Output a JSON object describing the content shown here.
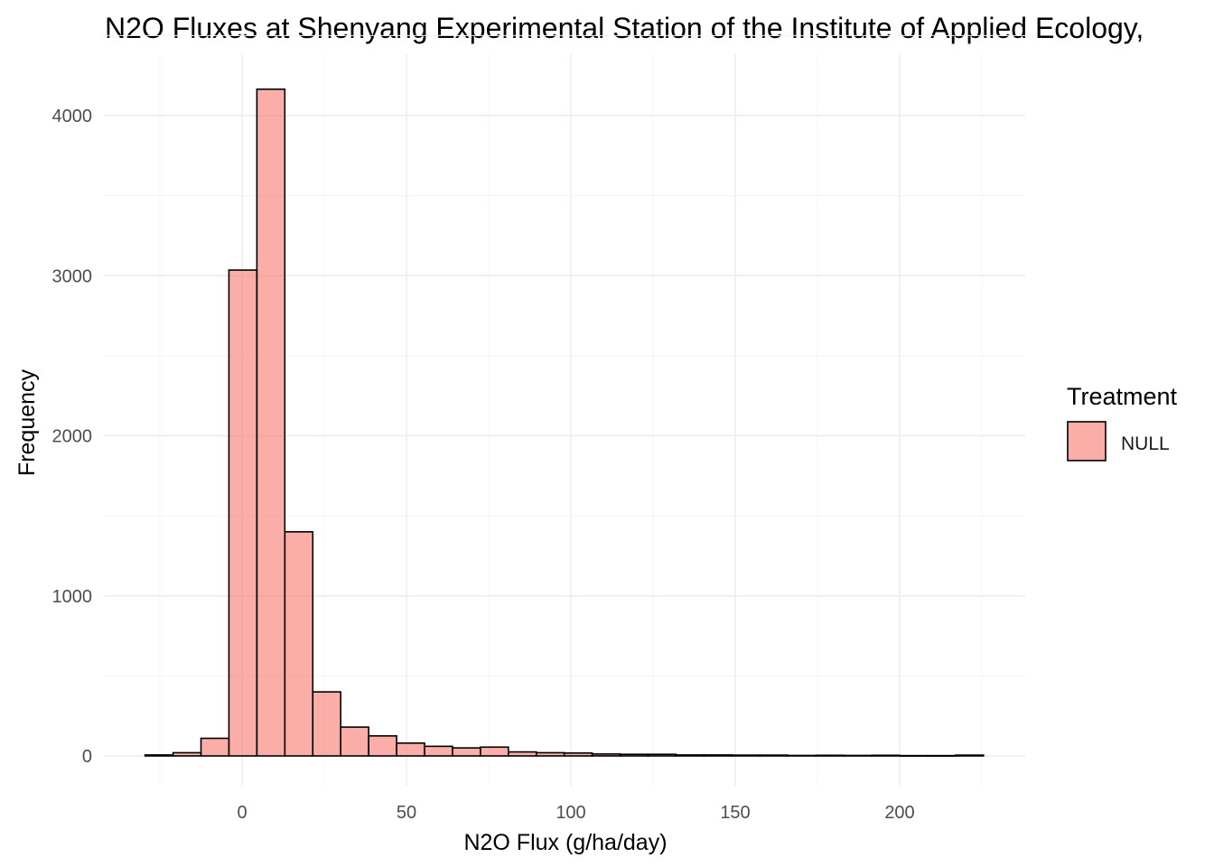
{
  "chart_data": {
    "type": "bar",
    "title": "N2O Fluxes at Shenyang Experimental Station of the Institute of Applied Ecology,",
    "xlabel": "N2O Flux (g/ha/day)",
    "ylabel": "Frequency",
    "xlim": [
      -30,
      225
    ],
    "ylim": [
      0,
      4200
    ],
    "x_ticks": [
      0,
      50,
      100,
      150,
      200
    ],
    "y_ticks": [
      0,
      1000,
      2000,
      3000,
      4000
    ],
    "grid": true,
    "legend": {
      "title": "Treatment",
      "position": "right",
      "entries": [
        {
          "label": "NULL",
          "color": "#f8766d"
        }
      ]
    },
    "bar_color": "#f8766d",
    "bar_opacity": 0.6,
    "bin_width": 8.5,
    "bins": [
      {
        "x0": -29.5,
        "x1": -21.0,
        "count": 6
      },
      {
        "x0": -21.0,
        "x1": -12.5,
        "count": 20
      },
      {
        "x0": -12.5,
        "x1": -4.0,
        "count": 110
      },
      {
        "x0": -4.0,
        "x1": 4.5,
        "count": 3035
      },
      {
        "x0": 4.5,
        "x1": 13.0,
        "count": 4165
      },
      {
        "x0": 13.0,
        "x1": 21.5,
        "count": 1400
      },
      {
        "x0": 21.5,
        "x1": 30.0,
        "count": 400
      },
      {
        "x0": 30.0,
        "x1": 38.5,
        "count": 180
      },
      {
        "x0": 38.5,
        "x1": 47.0,
        "count": 125
      },
      {
        "x0": 47.0,
        "x1": 55.5,
        "count": 80
      },
      {
        "x0": 55.5,
        "x1": 64.0,
        "count": 60
      },
      {
        "x0": 64.0,
        "x1": 72.5,
        "count": 50
      },
      {
        "x0": 72.5,
        "x1": 81.0,
        "count": 55
      },
      {
        "x0": 81.0,
        "x1": 89.5,
        "count": 25
      },
      {
        "x0": 89.5,
        "x1": 98.0,
        "count": 20
      },
      {
        "x0": 98.0,
        "x1": 106.5,
        "count": 18
      },
      {
        "x0": 106.5,
        "x1": 115.0,
        "count": 12
      },
      {
        "x0": 115.0,
        "x1": 123.5,
        "count": 10
      },
      {
        "x0": 123.5,
        "x1": 132.0,
        "count": 10
      },
      {
        "x0": 132.0,
        "x1": 140.5,
        "count": 6
      },
      {
        "x0": 140.5,
        "x1": 149.0,
        "count": 6
      },
      {
        "x0": 149.0,
        "x1": 157.5,
        "count": 5
      },
      {
        "x0": 157.5,
        "x1": 166.0,
        "count": 5
      },
      {
        "x0": 166.0,
        "x1": 174.5,
        "count": 3
      },
      {
        "x0": 174.5,
        "x1": 183.0,
        "count": 4
      },
      {
        "x0": 183.0,
        "x1": 191.5,
        "count": 3
      },
      {
        "x0": 191.5,
        "x1": 200.0,
        "count": 4
      },
      {
        "x0": 200.0,
        "x1": 208.5,
        "count": 2
      },
      {
        "x0": 208.5,
        "x1": 217.0,
        "count": 2
      },
      {
        "x0": 217.0,
        "x1": 225.5,
        "count": 5
      }
    ]
  }
}
